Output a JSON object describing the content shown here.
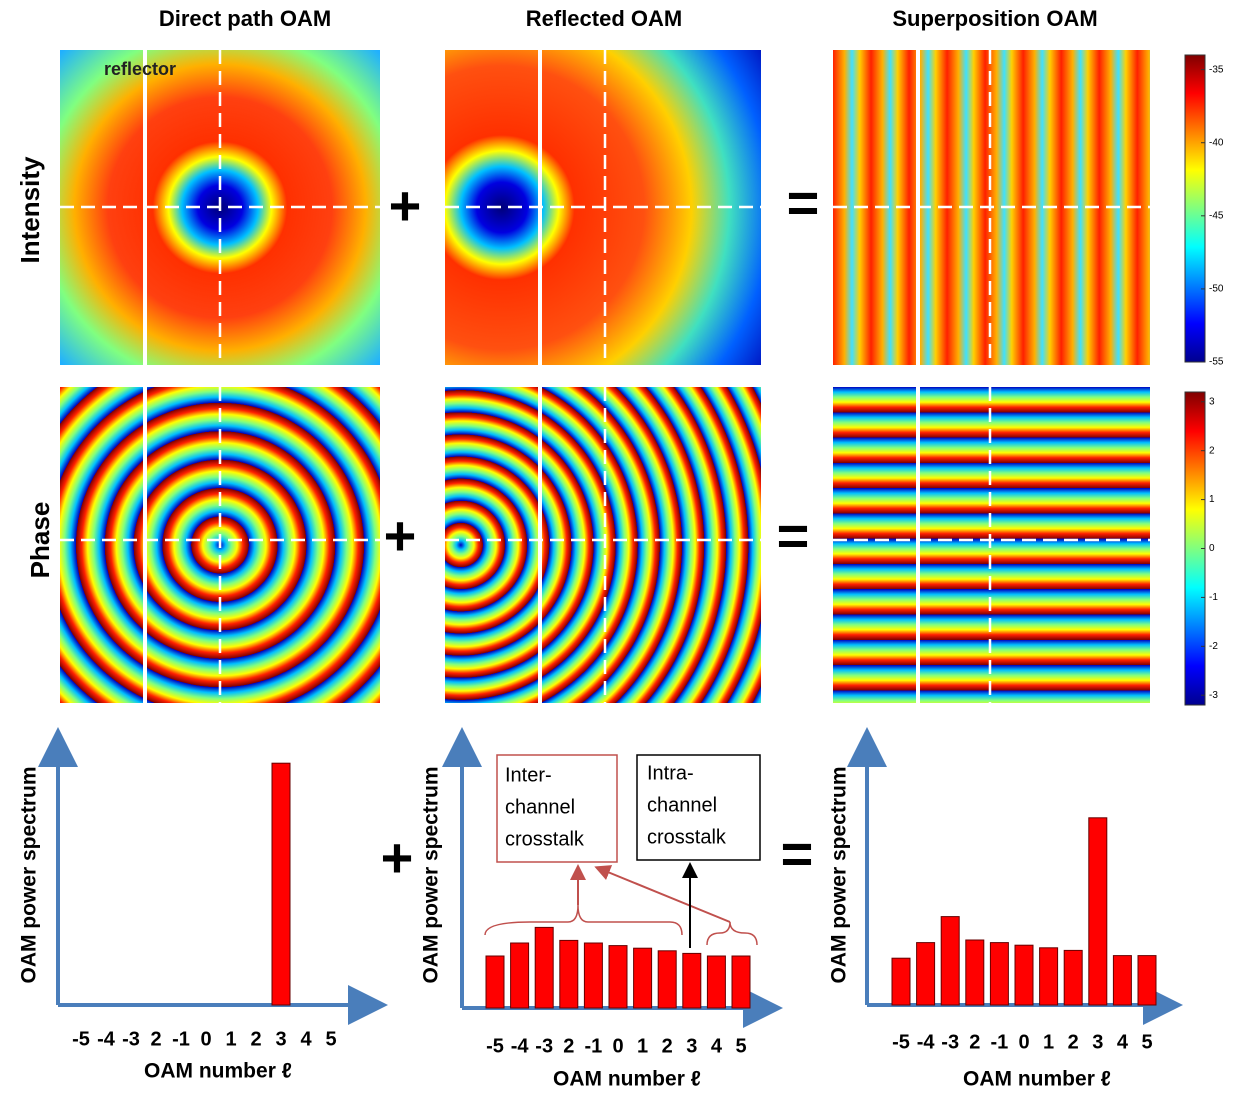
{
  "column_titles": [
    "Direct path OAM",
    "Reflected OAM",
    "Superposition OAM"
  ],
  "row_labels": [
    "Intensity",
    "Phase"
  ],
  "reflector_label": "reflector",
  "operators": [
    "+",
    "="
  ],
  "colorbars": [
    {
      "ylim": [
        -55,
        -34
      ],
      "yticks": [
        -35,
        -40,
        -45,
        -50,
        -55
      ]
    },
    {
      "ylim": [
        -3.2,
        3.2
      ],
      "yticks": [
        3,
        2,
        1,
        0,
        -1,
        -2,
        -3
      ]
    }
  ],
  "chart_data": [
    {
      "type": "bar",
      "categories": [
        "-5",
        "-4",
        "-3",
        "2",
        "-1",
        "0",
        "1",
        "2",
        "3",
        "4",
        "5"
      ],
      "values": [
        0,
        0,
        0,
        0,
        0,
        0,
        0,
        0,
        93,
        0,
        0
      ],
      "color": "#ff0000",
      "ylim": [
        0,
        100
      ],
      "y_label": "OAM power spectrum",
      "x_label": "OAM number ℓ"
    },
    {
      "type": "bar",
      "categories": [
        "-5",
        "-4",
        "-3",
        "2",
        "-1",
        "0",
        "1",
        "2",
        "3",
        "4",
        "5"
      ],
      "values": [
        20,
        25,
        31,
        26,
        25,
        24,
        23,
        22,
        21,
        20,
        20
      ],
      "color": "#ff0000",
      "ylim": [
        0,
        100
      ],
      "y_label": "OAM power spectrum",
      "x_label": "OAM number ℓ",
      "annotations": {
        "inter": [
          "Inter-",
          "channel",
          "crosstalk"
        ],
        "intra": [
          "Intra-",
          "channel",
          "crosstalk"
        ]
      }
    },
    {
      "type": "bar",
      "categories": [
        "-5",
        "-4",
        "-3",
        "2",
        "-1",
        "0",
        "1",
        "2",
        "3",
        "4",
        "5"
      ],
      "values": [
        18,
        24,
        34,
        25,
        24,
        23,
        22,
        21,
        72,
        19,
        19
      ],
      "color": "#ff0000",
      "ylim": [
        0,
        100
      ],
      "y_label": "OAM power spectrum",
      "x_label": "OAM number ℓ"
    }
  ]
}
